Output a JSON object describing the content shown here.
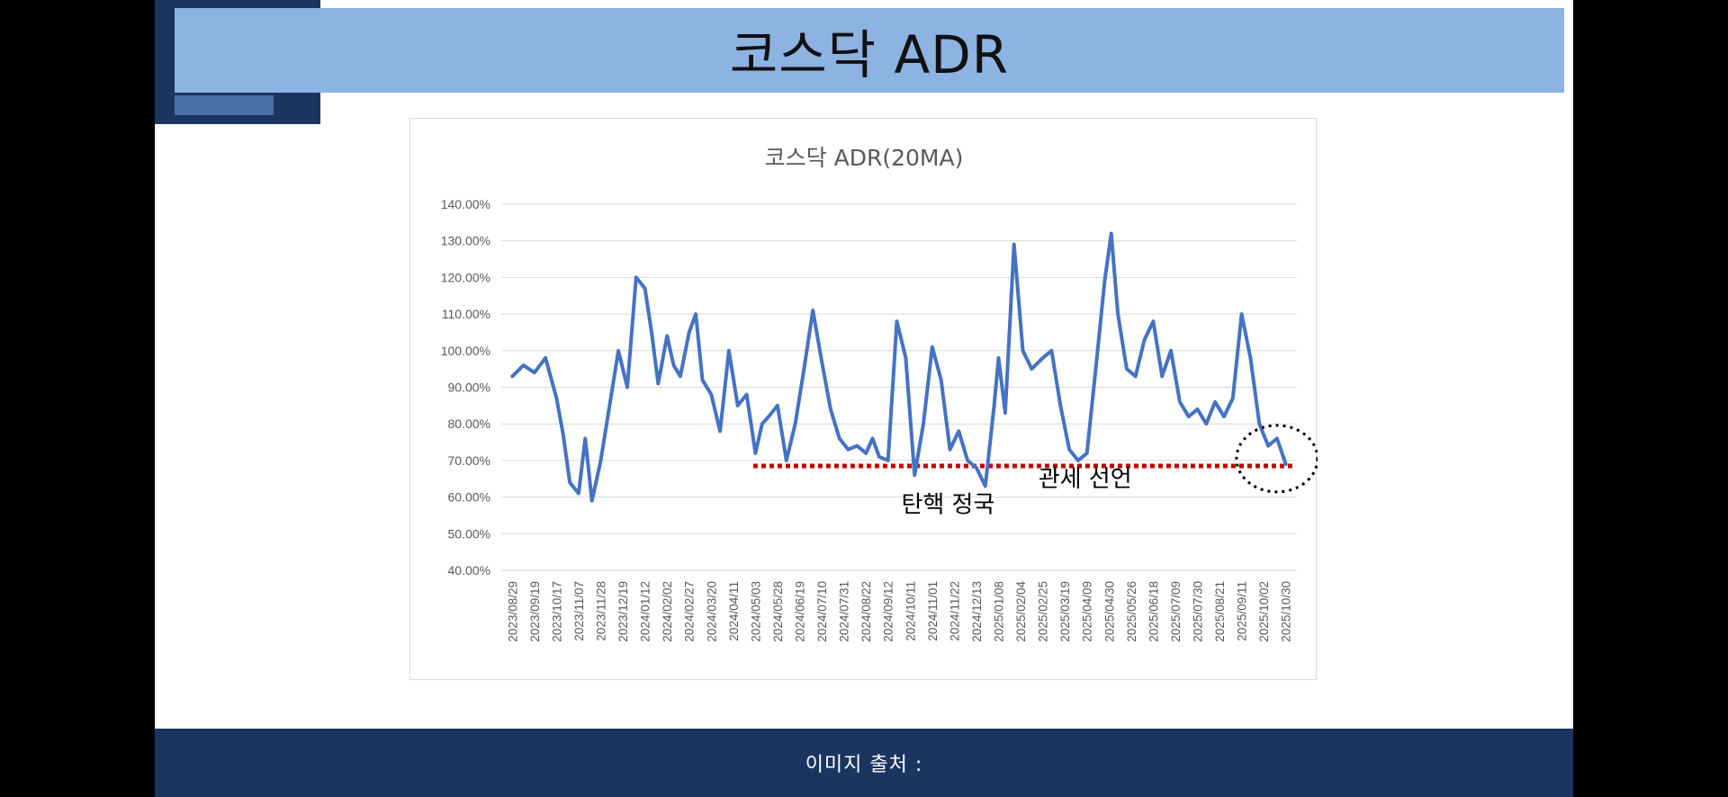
{
  "slide": {
    "title": "코스닥 ADR",
    "footer": "이미지 출처 :"
  },
  "colors": {
    "title_bar": "#8db3e2",
    "dark_bar": "#1b3560",
    "series": "#4472c4",
    "threshold": "#c00000",
    "grid": "#d9d9d9"
  },
  "chart_data": {
    "type": "line",
    "title": "코스닥 ADR(20MA)",
    "xlabel": "",
    "ylabel": "",
    "ylim": [
      40,
      140
    ],
    "yticks": [
      140,
      130,
      120,
      110,
      100,
      90,
      80,
      70,
      60,
      50,
      40
    ],
    "y_tick_labels": [
      "140.00%",
      "130.00%",
      "120.00%",
      "110.00%",
      "100.00%",
      "90.00%",
      "80.00%",
      "70.00%",
      "60.00%",
      "50.00%",
      "40.00%"
    ],
    "x_tick_labels": [
      "2023/08/29",
      "2023/09/19",
      "2023/10/17",
      "2023/11/07",
      "2023/11/28",
      "2023/12/19",
      "2024/01/12",
      "2024/02/02",
      "2024/02/27",
      "2024/03/20",
      "2024/04/11",
      "2024/05/03",
      "2024/05/28",
      "2024/06/19",
      "2024/07/10",
      "2024/07/31",
      "2024/08/22",
      "2024/09/12",
      "2024/10/11",
      "2024/11/01",
      "2024/11/22",
      "2024/12/13",
      "2025/01/08",
      "2025/02/04",
      "2025/02/25",
      "2025/03/19",
      "2025/04/09",
      "2025/04/30",
      "2025/05/26",
      "2025/06/18",
      "2025/07/09",
      "2025/07/30",
      "2025/08/21",
      "2025/09/11",
      "2025/10/02",
      "2025/10/30"
    ],
    "grid": true,
    "legend": "none",
    "series": [
      {
        "x": [
          0,
          0.5,
          1,
          1.5,
          2,
          2.3,
          2.6,
          3,
          3.3,
          3.6,
          4,
          4.4,
          4.8,
          5.2,
          5.6,
          6,
          6.3,
          6.6,
          7,
          7.3,
          7.6,
          8,
          8.3,
          8.6,
          9,
          9.4,
          9.8,
          10.2,
          10.6,
          11,
          11.3,
          11.6,
          12,
          12.4,
          12.8,
          13.2,
          13.6,
          14,
          14.4,
          14.8,
          15.2,
          15.6,
          16,
          16.3,
          16.6,
          17,
          17.4,
          17.8,
          18.2,
          18.6,
          19,
          19.4,
          19.8,
          20.2,
          20.6,
          21,
          21.4,
          21.8,
          22,
          22.3,
          22.7,
          23.1,
          23.5,
          24,
          24.4,
          24.8,
          25.2,
          25.6,
          26,
          26.4,
          26.8,
          27.1,
          27.4,
          27.8,
          28.2,
          28.6,
          29,
          29.4,
          29.8,
          30.2,
          30.6,
          31,
          31.4,
          31.8,
          32.2,
          32.6,
          33,
          33.4,
          33.8,
          34.2,
          34.6,
          35
        ],
        "y": [
          93,
          96,
          94,
          98,
          87,
          77,
          64,
          61,
          76,
          59,
          70,
          85,
          100,
          90,
          120,
          117,
          105,
          91,
          104,
          96,
          93,
          105,
          110,
          92,
          88,
          78,
          100,
          85,
          88,
          72,
          80,
          82,
          85,
          70,
          80,
          95,
          111,
          97,
          84,
          76,
          73,
          74,
          72,
          76,
          71,
          70,
          108,
          98,
          66,
          80,
          101,
          92,
          73,
          78,
          70,
          68,
          63,
          85,
          98,
          83,
          129,
          100,
          95,
          98,
          100,
          85,
          73,
          70,
          72,
          95,
          119,
          132,
          110,
          95,
          93,
          103,
          108,
          93,
          100,
          86,
          82,
          84,
          80,
          86,
          82,
          87,
          110,
          98,
          80,
          74,
          76,
          69
        ]
      }
    ],
    "threshold_y": 68.5,
    "annotations": [
      "탄핵 정국",
      "관세 선언"
    ]
  }
}
